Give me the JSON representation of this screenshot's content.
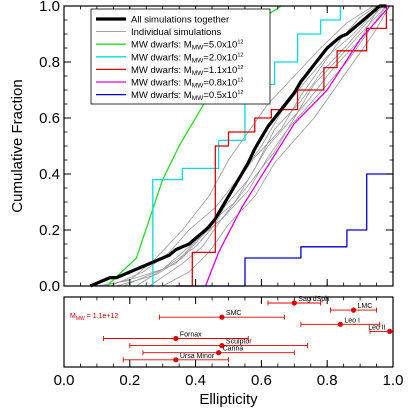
{
  "chart_data": [
    {
      "type": "line",
      "ylabel": "Cumulative Fraction",
      "xlim": [
        0.0,
        1.0
      ],
      "ylim": [
        0.0,
        1.0
      ],
      "y_ticks": [
        "0.0",
        "0.2",
        "0.4",
        "0.6",
        "0.8",
        "1.0"
      ],
      "legend_placement": "top-left",
      "legend": [
        {
          "text": "All simulations together"
        },
        {
          "text": "Individual simulations"
        },
        {
          "prefix": "MW dwarfs: M",
          "sub": "MW",
          "mid": "=5.0x10",
          "sup": "12"
        },
        {
          "prefix": "MW dwarfs: M",
          "sub": "MW",
          "mid": "=2.0x10",
          "sup": "12"
        },
        {
          "prefix": "MW dwarfs: M",
          "sub": "MW",
          "mid": "=1.1x10",
          "sup": "12"
        },
        {
          "prefix": "MW dwarfs: M",
          "sub": "MW",
          "mid": "=0.8x10",
          "sup": "12"
        },
        {
          "prefix": "MW dwarfs: M",
          "sub": "MW",
          "mid": "=0.5x10",
          "sup": "12"
        }
      ],
      "series": [
        {
          "key": "all_sims",
          "color": "#000000",
          "width": 3.2,
          "step": false,
          "x": [
            0.08,
            0.1,
            0.12,
            0.14,
            0.16,
            0.18,
            0.2,
            0.22,
            0.24,
            0.26,
            0.28,
            0.3,
            0.32,
            0.34,
            0.36,
            0.38,
            0.4,
            0.42,
            0.44,
            0.46,
            0.48,
            0.5,
            0.52,
            0.54,
            0.56,
            0.58,
            0.6,
            0.62,
            0.64,
            0.66,
            0.68,
            0.7,
            0.72,
            0.74,
            0.76,
            0.78,
            0.8,
            0.82,
            0.84,
            0.86,
            0.88,
            0.9,
            0.92,
            0.94,
            0.96,
            0.98
          ],
          "y": [
            0.0,
            0.01,
            0.02,
            0.03,
            0.03,
            0.04,
            0.05,
            0.06,
            0.07,
            0.08,
            0.09,
            0.1,
            0.11,
            0.13,
            0.14,
            0.15,
            0.17,
            0.19,
            0.21,
            0.24,
            0.28,
            0.32,
            0.36,
            0.4,
            0.44,
            0.49,
            0.53,
            0.57,
            0.6,
            0.63,
            0.66,
            0.69,
            0.73,
            0.76,
            0.79,
            0.82,
            0.85,
            0.87,
            0.89,
            0.9,
            0.92,
            0.94,
            0.96,
            0.98,
            1.0,
            1.0
          ]
        },
        {
          "key": "mw_5p0",
          "color": "#22dd22",
          "width": 1.3,
          "step": false,
          "x": [
            0.13,
            0.22,
            0.3,
            0.35,
            0.43,
            0.5,
            0.55,
            0.62,
            0.66
          ],
          "y": [
            0.0,
            0.1,
            0.38,
            0.5,
            0.66,
            0.78,
            0.88,
            0.97,
            1.0
          ]
        },
        {
          "key": "mw_2p0",
          "color": "#00e0e0",
          "width": 1.3,
          "step": true,
          "x": [
            0.21,
            0.27,
            0.36,
            0.47,
            0.52,
            0.55,
            0.56,
            0.64,
            0.71,
            0.78,
            0.81,
            0.84
          ],
          "y": [
            0.0,
            0.38,
            0.42,
            0.52,
            0.52,
            0.72,
            0.72,
            0.8,
            0.9,
            0.95,
            0.95,
            1.0
          ]
        },
        {
          "key": "mw_1p1",
          "color": "#e00000",
          "width": 1.3,
          "step": true,
          "x": [
            0.34,
            0.39,
            0.46,
            0.5,
            0.58,
            0.63,
            0.71,
            0.79,
            0.83,
            0.92,
            0.98
          ],
          "y": [
            0.0,
            0.12,
            0.5,
            0.55,
            0.6,
            0.63,
            0.7,
            0.78,
            0.84,
            0.92,
            1.0
          ]
        },
        {
          "key": "mw_0p8",
          "color": "#e000e0",
          "width": 1.3,
          "step": false,
          "x": [
            0.43,
            0.47,
            0.54,
            0.62,
            0.7,
            0.8,
            0.9,
            0.99
          ],
          "y": [
            0.0,
            0.12,
            0.28,
            0.43,
            0.58,
            0.7,
            0.88,
            1.0
          ]
        },
        {
          "key": "mw_0p5",
          "color": "#0000dd",
          "width": 1.3,
          "step": true,
          "x": [
            0.34,
            0.55,
            0.72,
            0.86,
            0.92,
            1.0
          ],
          "y": [
            0.0,
            0.1,
            0.14,
            0.2,
            0.4,
            0.4
          ]
        },
        {
          "key": "ind_1",
          "color": "#9a9a9a",
          "width": 0.8,
          "step": false,
          "x": [
            0.1,
            0.2,
            0.28,
            0.36,
            0.44,
            0.5,
            0.56,
            0.62,
            0.7,
            0.78,
            0.86,
            0.94
          ],
          "y": [
            0.0,
            0.02,
            0.1,
            0.2,
            0.32,
            0.45,
            0.55,
            0.65,
            0.75,
            0.85,
            0.94,
            1.0
          ]
        },
        {
          "key": "ind_2",
          "color": "#9a9a9a",
          "width": 0.8,
          "step": false,
          "x": [
            0.14,
            0.24,
            0.32,
            0.38,
            0.46,
            0.54,
            0.6,
            0.66,
            0.74,
            0.8,
            0.88,
            0.96
          ],
          "y": [
            0.0,
            0.05,
            0.12,
            0.2,
            0.28,
            0.4,
            0.5,
            0.62,
            0.74,
            0.82,
            0.9,
            1.0
          ]
        },
        {
          "key": "ind_3",
          "color": "#9a9a9a",
          "width": 0.8,
          "step": false,
          "x": [
            0.18,
            0.26,
            0.34,
            0.4,
            0.48,
            0.56,
            0.64,
            0.7,
            0.76,
            0.84,
            0.9,
            0.98
          ],
          "y": [
            0.0,
            0.04,
            0.08,
            0.16,
            0.24,
            0.36,
            0.48,
            0.6,
            0.72,
            0.82,
            0.9,
            1.0
          ]
        },
        {
          "key": "ind_4",
          "color": "#9a9a9a",
          "width": 0.8,
          "step": false,
          "x": [
            0.22,
            0.3,
            0.38,
            0.44,
            0.52,
            0.58,
            0.64,
            0.72,
            0.78,
            0.86,
            0.92,
            0.97
          ],
          "y": [
            0.0,
            0.06,
            0.14,
            0.22,
            0.3,
            0.42,
            0.56,
            0.66,
            0.76,
            0.86,
            0.94,
            1.0
          ]
        },
        {
          "key": "ind_5",
          "color": "#9a9a9a",
          "width": 0.8,
          "step": false,
          "x": [
            0.26,
            0.36,
            0.42,
            0.48,
            0.56,
            0.62,
            0.68,
            0.74,
            0.8,
            0.86,
            0.92,
            0.98
          ],
          "y": [
            0.0,
            0.08,
            0.14,
            0.24,
            0.34,
            0.46,
            0.56,
            0.64,
            0.72,
            0.8,
            0.9,
            1.0
          ]
        },
        {
          "key": "ind_6",
          "color": "#9a9a9a",
          "width": 0.8,
          "step": false,
          "x": [
            0.12,
            0.22,
            0.3,
            0.4,
            0.46,
            0.52,
            0.58,
            0.66,
            0.72,
            0.78,
            0.84,
            0.9,
            0.95
          ],
          "y": [
            0.0,
            0.03,
            0.06,
            0.14,
            0.22,
            0.36,
            0.46,
            0.56,
            0.68,
            0.78,
            0.88,
            0.96,
            1.0
          ]
        },
        {
          "key": "ind_7",
          "color": "#9a9a9a",
          "width": 0.8,
          "step": false,
          "x": [
            0.3,
            0.38,
            0.44,
            0.5,
            0.58,
            0.64,
            0.7,
            0.76,
            0.82,
            0.88,
            0.94,
            0.99
          ],
          "y": [
            0.0,
            0.05,
            0.12,
            0.22,
            0.32,
            0.44,
            0.52,
            0.6,
            0.7,
            0.8,
            0.9,
            1.0
          ]
        },
        {
          "key": "ind_8",
          "color": "#9a9a9a",
          "width": 0.8,
          "step": false,
          "x": [
            0.16,
            0.28,
            0.36,
            0.42,
            0.5,
            0.56,
            0.62,
            0.68,
            0.74,
            0.82,
            0.9,
            0.96
          ],
          "y": [
            0.0,
            0.04,
            0.1,
            0.18,
            0.3,
            0.38,
            0.5,
            0.58,
            0.66,
            0.78,
            0.88,
            1.0
          ]
        }
      ]
    },
    {
      "type": "scatter",
      "xlabel": "Ellipticity",
      "xlim": [
        0.0,
        1.0
      ],
      "x_ticks": [
        "0.0",
        "0.2",
        "0.4",
        "0.6",
        "0.8",
        "1.0"
      ],
      "annotation": {
        "prefix": "M",
        "sub": "MW",
        "suffix": " = 1.1e+12"
      },
      "color": "#e00000",
      "points": [
        {
          "name": "Sag dSph",
          "x": 0.7,
          "xmin": 0.62,
          "xmax": 0.78,
          "row": 0
        },
        {
          "name": "LMC",
          "x": 0.88,
          "xmin": 0.81,
          "xmax": 0.95,
          "row": 1
        },
        {
          "name": "SMC",
          "x": 0.48,
          "xmin": 0.29,
          "xmax": 0.67,
          "row": 2
        },
        {
          "name": "Leo I",
          "x": 0.84,
          "xmin": 0.72,
          "xmax": 0.96,
          "row": 3
        },
        {
          "name": "Leo II",
          "x": 0.99,
          "xmin": 0.93,
          "xmax": 1.0,
          "row": 4
        },
        {
          "name": "Fornax",
          "x": 0.34,
          "xmin": 0.12,
          "xmax": 0.56,
          "row": 5
        },
        {
          "name": "Sculptor",
          "x": 0.48,
          "xmin": 0.2,
          "xmax": 0.74,
          "row": 6
        },
        {
          "name": "Carina",
          "x": 0.47,
          "xmin": 0.24,
          "xmax": 0.7,
          "row": 7
        },
        {
          "name": "Ursa Minor",
          "x": 0.34,
          "xmin": 0.18,
          "xmax": 0.5,
          "row": 8
        }
      ]
    }
  ]
}
